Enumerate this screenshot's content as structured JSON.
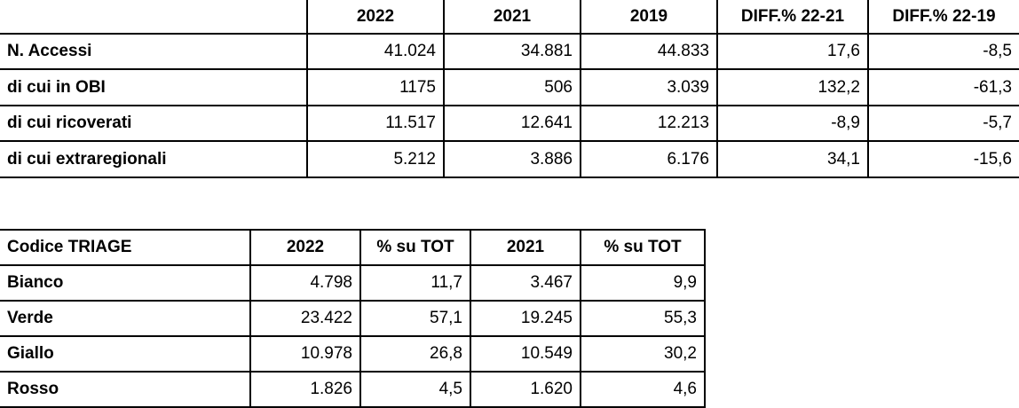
{
  "table1": {
    "headers": [
      "",
      "2022",
      "2021",
      "2019",
      "DIFF.% 22-21",
      "DIFF.% 22-19"
    ],
    "rows": [
      {
        "label": "N. Accessi",
        "values": [
          "41.024",
          "34.881",
          "44.833",
          "17,6",
          "-8,5"
        ]
      },
      {
        "label": "di cui in OBI",
        "values": [
          "1175",
          "506",
          "3.039",
          "132,2",
          "-61,3"
        ]
      },
      {
        "label": "di cui ricoverati",
        "values": [
          "11.517",
          "12.641",
          "12.213",
          "-8,9",
          "-5,7"
        ]
      },
      {
        "label": "di cui extraregionali",
        "values": [
          "5.212",
          "3.886",
          "6.176",
          "34,1",
          "-15,6"
        ]
      }
    ]
  },
  "table2": {
    "headers": [
      "Codice TRIAGE",
      "2022",
      "% su TOT",
      "2021",
      "% su TOT"
    ],
    "rows": [
      {
        "label": "Bianco",
        "values": [
          "4.798",
          "11,7",
          "3.467",
          "9,9"
        ]
      },
      {
        "label": "Verde",
        "values": [
          "23.422",
          "57,1",
          "19.245",
          "55,3"
        ]
      },
      {
        "label": "Giallo",
        "values": [
          "10.978",
          "26,8",
          "10.549",
          "30,2"
        ]
      },
      {
        "label": "Rosso",
        "values": [
          "1.826",
          "4,5",
          "1.620",
          "4,6"
        ]
      }
    ]
  }
}
